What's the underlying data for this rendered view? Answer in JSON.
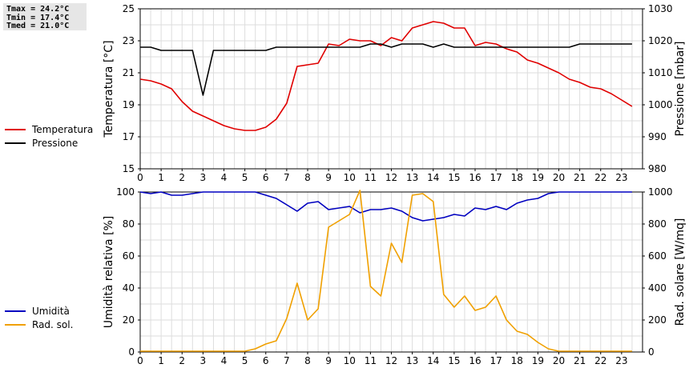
{
  "stats": {
    "tmax": "Tmax = 24.2°C",
    "tmin": "Tmin = 17.4°C",
    "tmed": "Tmed = 21.0°C"
  },
  "legends": {
    "top": [
      {
        "name": "Temperatura",
        "color": "#e00000"
      },
      {
        "name": "Pressione",
        "color": "#000000"
      }
    ],
    "bottom": [
      {
        "name": "Umidità",
        "color": "#0000c0"
      },
      {
        "name": "Rad. sol.",
        "color": "#f0a000"
      }
    ]
  },
  "chart_data": [
    {
      "type": "line",
      "xlabel": "",
      "ylabel": "Temperatura [°C]",
      "ylabel_right": "Pressione [mbar]",
      "xlim": [
        0,
        24
      ],
      "ylim": [
        15,
        25
      ],
      "ylim_right": [
        980,
        1030
      ],
      "x_ticks": [
        "0",
        "1",
        "2",
        "3",
        "4",
        "5",
        "6",
        "7",
        "8",
        "9",
        "10",
        "11",
        "12",
        "13",
        "14",
        "15",
        "16",
        "17",
        "18",
        "19",
        "20",
        "21",
        "22",
        "23"
      ],
      "y_ticks": [
        "15",
        "17",
        "19",
        "21",
        "23",
        "25"
      ],
      "y_ticks_right": [
        "980",
        "990",
        "1000",
        "1010",
        "1020",
        "1030"
      ],
      "grid": true,
      "series": [
        {
          "name": "Temperatura",
          "color": "#e00000",
          "axis": "left",
          "x": [
            0,
            0.5,
            1,
            1.5,
            2,
            2.5,
            3,
            3.5,
            4,
            4.5,
            5,
            5.5,
            6,
            6.5,
            7,
            7.5,
            8,
            8.5,
            9,
            9.5,
            10,
            10.5,
            11,
            11.5,
            12,
            12.5,
            13,
            13.5,
            14,
            14.5,
            15,
            15.5,
            16,
            16.5,
            17,
            17.5,
            18,
            18.5,
            19,
            19.5,
            20,
            20.5,
            21,
            21.5,
            22,
            22.5,
            23,
            23.5
          ],
          "y": [
            20.6,
            20.5,
            20.3,
            20.0,
            19.2,
            18.6,
            18.3,
            18.0,
            17.7,
            17.5,
            17.4,
            17.4,
            17.6,
            18.1,
            19.1,
            21.4,
            21.5,
            21.6,
            22.8,
            22.7,
            23.1,
            23.0,
            23.0,
            22.7,
            23.2,
            23.0,
            23.8,
            24.0,
            24.2,
            24.1,
            23.8,
            23.8,
            22.7,
            22.9,
            22.8,
            22.5,
            22.3,
            21.8,
            21.6,
            21.3,
            21.0,
            20.6,
            20.4,
            20.1,
            20.0,
            19.7,
            19.3,
            18.9
          ]
        },
        {
          "name": "Pressione",
          "color": "#000000",
          "axis": "right",
          "x": [
            0,
            0.5,
            1,
            1.5,
            2,
            2.5,
            3,
            3.5,
            4,
            4.5,
            5,
            5.5,
            6,
            6.5,
            7,
            7.5,
            8,
            8.5,
            9,
            9.5,
            10,
            10.5,
            11,
            11.5,
            12,
            12.5,
            13,
            13.5,
            14,
            14.5,
            15,
            15.5,
            16,
            16.5,
            17,
            17.5,
            18,
            18.5,
            19,
            19.5,
            20,
            20.5,
            21,
            21.5,
            22,
            22.5,
            23,
            23.5
          ],
          "y": [
            1018,
            1018,
            1017,
            1017,
            1017,
            1017,
            1003,
            1017,
            1017,
            1017,
            1017,
            1017,
            1017,
            1018,
            1018,
            1018,
            1018,
            1018,
            1018,
            1018,
            1018,
            1018,
            1019,
            1019,
            1018,
            1019,
            1019,
            1019,
            1018,
            1019,
            1018,
            1018,
            1018,
            1018,
            1018,
            1018,
            1018,
            1018,
            1018,
            1018,
            1018,
            1018,
            1019,
            1019,
            1019,
            1019,
            1019,
            1019
          ]
        }
      ]
    },
    {
      "type": "line",
      "xlabel": "",
      "ylabel": "Umidità relativa [%]",
      "ylabel_right": "Rad. solare [W/mq]",
      "xlim": [
        0,
        24
      ],
      "ylim": [
        0,
        100
      ],
      "ylim_right": [
        0,
        1000
      ],
      "x_ticks": [
        "0",
        "1",
        "2",
        "3",
        "4",
        "5",
        "6",
        "7",
        "8",
        "9",
        "10",
        "11",
        "12",
        "13",
        "14",
        "15",
        "16",
        "17",
        "18",
        "19",
        "20",
        "21",
        "22",
        "23"
      ],
      "y_ticks": [
        "0",
        "20",
        "40",
        "60",
        "80",
        "100"
      ],
      "y_ticks_right": [
        "0",
        "200",
        "400",
        "600",
        "800",
        "1000"
      ],
      "grid": true,
      "series": [
        {
          "name": "Umidità",
          "color": "#0000c0",
          "axis": "left",
          "x": [
            0,
            0.5,
            1,
            1.5,
            2,
            2.5,
            3,
            3.5,
            4,
            4.5,
            5,
            5.5,
            6,
            6.5,
            7,
            7.5,
            8,
            8.5,
            9,
            9.5,
            10,
            10.5,
            11,
            11.5,
            12,
            12.5,
            13,
            13.5,
            14,
            14.5,
            15,
            15.5,
            16,
            16.5,
            17,
            17.5,
            18,
            18.5,
            19,
            19.5,
            20,
            20.5,
            21,
            21.5,
            22,
            22.5,
            23,
            23.5
          ],
          "y": [
            100,
            99,
            100,
            98,
            98,
            99,
            100,
            100,
            100,
            100,
            100,
            100,
            98,
            96,
            92,
            88,
            93,
            94,
            89,
            90,
            91,
            87,
            89,
            89,
            90,
            88,
            84,
            82,
            83,
            84,
            86,
            85,
            90,
            89,
            91,
            89,
            93,
            95,
            96,
            99,
            100,
            100,
            100,
            100,
            100,
            100,
            100,
            100
          ]
        },
        {
          "name": "Rad. sol.",
          "color": "#f0a000",
          "axis": "right",
          "x": [
            0,
            0.5,
            1,
            1.5,
            2,
            2.5,
            3,
            3.5,
            4,
            4.5,
            5,
            5.5,
            6,
            6.5,
            7,
            7.5,
            8,
            8.5,
            9,
            9.5,
            10,
            10.5,
            11,
            11.5,
            12,
            12.5,
            13,
            13.5,
            14,
            14.5,
            15,
            15.5,
            16,
            16.5,
            17,
            17.5,
            18,
            18.5,
            19,
            19.5,
            20,
            20.5,
            21,
            21.5,
            22,
            22.5,
            23,
            23.5
          ],
          "y": [
            5,
            5,
            5,
            5,
            5,
            5,
            5,
            5,
            5,
            5,
            5,
            20,
            50,
            70,
            210,
            430,
            200,
            270,
            780,
            820,
            860,
            1010,
            410,
            350,
            680,
            560,
            980,
            990,
            940,
            360,
            280,
            350,
            260,
            280,
            350,
            200,
            130,
            110,
            60,
            20,
            5,
            5,
            5,
            5,
            5,
            5,
            5,
            5
          ]
        }
      ]
    }
  ]
}
